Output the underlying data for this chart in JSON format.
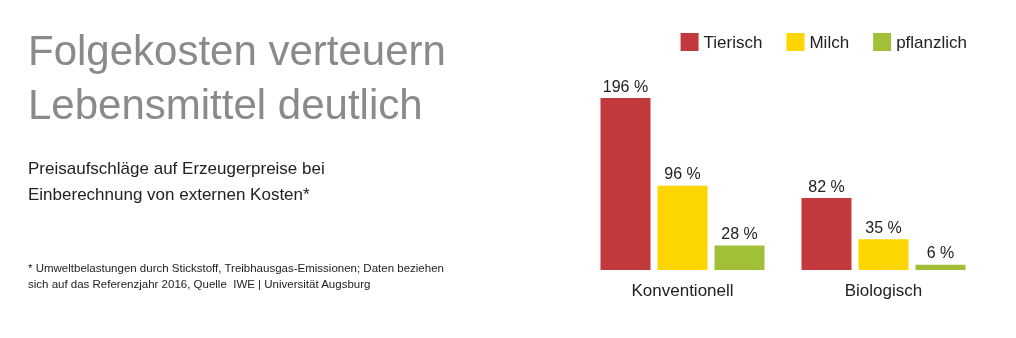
{
  "chart_data": {
    "type": "bar",
    "title": "Folgekosten verteuern Lebensmittel deutlich",
    "subtitle": "Preisaufschläge auf Erzeugerpreise bei Einberechnung von externen Kosten*",
    "annotations": [
      "* Umweltbelastungen durch Stickstoff, Treibhausgas-Emissionen; Daten beziehen sich auf das Referenzjahr 2016, Quelle  IWE | Universität Augsburg"
    ],
    "categories": [
      "Konventionell",
      "Biologisch"
    ],
    "series": [
      {
        "name": "Tierisch",
        "color": "#c1383d",
        "values": [
          196,
          82
        ],
        "value_labels": [
          "196 %",
          "82 %"
        ]
      },
      {
        "name": "Milch",
        "color": "#fdd500",
        "values": [
          96,
          35
        ],
        "value_labels": [
          "96 %",
          "35 %"
        ]
      },
      {
        "name": "pflanzlich",
        "color": "#a2c037",
        "values": [
          28,
          6
        ],
        "value_labels": [
          "28 %",
          "6 %"
        ]
      }
    ],
    "legend": "top right"
  }
}
